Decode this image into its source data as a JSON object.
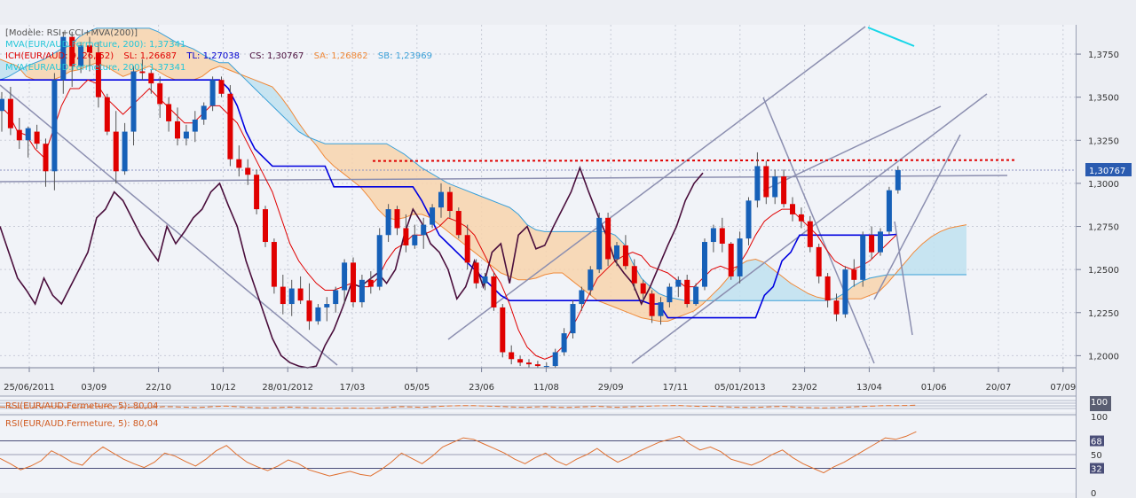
{
  "colors": {
    "background": "#f1f3f8",
    "grid": "#c9ccd7",
    "bull": "#1660b8",
    "bear": "#e00000",
    "tenkan": "#e00000",
    "kijun": "#0000e0",
    "chikou": "#4a0e3c",
    "cloud_up": "#f8d3ad",
    "cloud_up_line": "#f08a3a",
    "cloud_down": "#bfe0f0",
    "cloud_down_line": "#3aa0d8",
    "mva": "#16d6e8",
    "trend": "#8c8fb0",
    "resistance": "#e00000",
    "rsi": "#e07030",
    "price_tag": "#2a5bb0"
  },
  "header": {
    "model": "[Modèle: RSI+CCI+MVA(200)]",
    "mva_line1": "MVA(EUR/AUD.Fermeture, 200): 1,37341",
    "ichimoku": "ICH(EUR/AUD: 9, 26, 52)",
    "ich_sl": "SL: 1,26687",
    "ich_tl": "TL: 1,27038",
    "ich_cs": "CS: 1,30767",
    "ich_sa": "SA: 1,26862",
    "ich_sb": "SB: 1,23969",
    "mva_line2": "MVA(EUR/AUD.Fermeture, 200): 1,37341"
  },
  "rsi_panels": [
    {
      "label": "RSI(EUR/AUD.Fermeture, 5): 80,04",
      "top_tick": "100"
    },
    {
      "label": "RSI(EUR/AUD.Fermeture, 5): 80,04",
      "ticks": [
        "100",
        "68",
        "50",
        "32",
        "0"
      ]
    }
  ],
  "chart_data": {
    "type": "candlestick",
    "instrument": "EUR/AUD",
    "x_ticks": [
      "25/06/2011",
      "03/09",
      "22/10",
      "10/12",
      "28/01/2012",
      "17/03",
      "05/05",
      "23/06",
      "11/08",
      "29/09",
      "17/11",
      "05/01/2013",
      "23/02",
      "13/04",
      "01/06",
      "20/07",
      "07/09"
    ],
    "y_ticks": [
      "1,3750",
      "1,3500",
      "1,3250",
      "1,3000",
      "1,2750",
      "1,2500",
      "1,2250",
      "1,2000"
    ],
    "ylim": [
      1.193,
      1.392
    ],
    "last_price": "1,30767",
    "last_value": 1.30767,
    "resistance_level": 1.313,
    "candles": [
      {
        "o": 1.342,
        "h": 1.353,
        "l": 1.33,
        "c": 1.349
      },
      {
        "o": 1.349,
        "h": 1.356,
        "l": 1.328,
        "c": 1.332
      },
      {
        "o": 1.331,
        "h": 1.338,
        "l": 1.32,
        "c": 1.325
      },
      {
        "o": 1.325,
        "h": 1.333,
        "l": 1.315,
        "c": 1.332
      },
      {
        "o": 1.33,
        "h": 1.334,
        "l": 1.32,
        "c": 1.323
      },
      {
        "o": 1.323,
        "h": 1.326,
        "l": 1.298,
        "c": 1.307
      },
      {
        "o": 1.307,
        "h": 1.364,
        "l": 1.296,
        "c": 1.36
      },
      {
        "o": 1.36,
        "h": 1.388,
        "l": 1.352,
        "c": 1.385
      },
      {
        "o": 1.385,
        "h": 1.388,
        "l": 1.356,
        "c": 1.368
      },
      {
        "o": 1.368,
        "h": 1.382,
        "l": 1.364,
        "c": 1.38
      },
      {
        "o": 1.38,
        "h": 1.385,
        "l": 1.365,
        "c": 1.376
      },
      {
        "o": 1.376,
        "h": 1.382,
        "l": 1.344,
        "c": 1.35
      },
      {
        "o": 1.35,
        "h": 1.352,
        "l": 1.328,
        "c": 1.33
      },
      {
        "o": 1.33,
        "h": 1.342,
        "l": 1.3,
        "c": 1.307
      },
      {
        "o": 1.307,
        "h": 1.335,
        "l": 1.305,
        "c": 1.33
      },
      {
        "o": 1.33,
        "h": 1.368,
        "l": 1.322,
        "c": 1.365
      },
      {
        "o": 1.365,
        "h": 1.372,
        "l": 1.36,
        "c": 1.364
      },
      {
        "o": 1.364,
        "h": 1.366,
        "l": 1.352,
        "c": 1.358
      },
      {
        "o": 1.358,
        "h": 1.362,
        "l": 1.338,
        "c": 1.346
      },
      {
        "o": 1.346,
        "h": 1.35,
        "l": 1.33,
        "c": 1.336
      },
      {
        "o": 1.336,
        "h": 1.344,
        "l": 1.322,
        "c": 1.326
      },
      {
        "o": 1.326,
        "h": 1.334,
        "l": 1.322,
        "c": 1.33
      },
      {
        "o": 1.33,
        "h": 1.342,
        "l": 1.324,
        "c": 1.337
      },
      {
        "o": 1.337,
        "h": 1.347,
        "l": 1.334,
        "c": 1.345
      },
      {
        "o": 1.345,
        "h": 1.362,
        "l": 1.342,
        "c": 1.36
      },
      {
        "o": 1.36,
        "h": 1.362,
        "l": 1.35,
        "c": 1.352
      },
      {
        "o": 1.352,
        "h": 1.357,
        "l": 1.31,
        "c": 1.314
      },
      {
        "o": 1.314,
        "h": 1.322,
        "l": 1.304,
        "c": 1.309
      },
      {
        "o": 1.309,
        "h": 1.314,
        "l": 1.299,
        "c": 1.305
      },
      {
        "o": 1.305,
        "h": 1.308,
        "l": 1.282,
        "c": 1.285
      },
      {
        "o": 1.285,
        "h": 1.287,
        "l": 1.263,
        "c": 1.266
      },
      {
        "o": 1.266,
        "h": 1.268,
        "l": 1.236,
        "c": 1.24
      },
      {
        "o": 1.24,
        "h": 1.247,
        "l": 1.224,
        "c": 1.23
      },
      {
        "o": 1.23,
        "h": 1.244,
        "l": 1.223,
        "c": 1.239
      },
      {
        "o": 1.239,
        "h": 1.246,
        "l": 1.23,
        "c": 1.232
      },
      {
        "o": 1.232,
        "h": 1.242,
        "l": 1.215,
        "c": 1.22
      },
      {
        "o": 1.22,
        "h": 1.23,
        "l": 1.218,
        "c": 1.228
      },
      {
        "o": 1.228,
        "h": 1.234,
        "l": 1.22,
        "c": 1.23
      },
      {
        "o": 1.23,
        "h": 1.24,
        "l": 1.225,
        "c": 1.238
      },
      {
        "o": 1.238,
        "h": 1.256,
        "l": 1.23,
        "c": 1.254
      },
      {
        "o": 1.254,
        "h": 1.257,
        "l": 1.228,
        "c": 1.231
      },
      {
        "o": 1.231,
        "h": 1.247,
        "l": 1.228,
        "c": 1.244
      },
      {
        "o": 1.244,
        "h": 1.249,
        "l": 1.236,
        "c": 1.24
      },
      {
        "o": 1.24,
        "h": 1.274,
        "l": 1.238,
        "c": 1.27
      },
      {
        "o": 1.27,
        "h": 1.288,
        "l": 1.266,
        "c": 1.285
      },
      {
        "o": 1.285,
        "h": 1.287,
        "l": 1.27,
        "c": 1.274
      },
      {
        "o": 1.274,
        "h": 1.282,
        "l": 1.26,
        "c": 1.264
      },
      {
        "o": 1.264,
        "h": 1.276,
        "l": 1.262,
        "c": 1.27
      },
      {
        "o": 1.27,
        "h": 1.28,
        "l": 1.262,
        "c": 1.276
      },
      {
        "o": 1.276,
        "h": 1.288,
        "l": 1.274,
        "c": 1.286
      },
      {
        "o": 1.286,
        "h": 1.3,
        "l": 1.28,
        "c": 1.295
      },
      {
        "o": 1.295,
        "h": 1.298,
        "l": 1.28,
        "c": 1.284
      },
      {
        "o": 1.284,
        "h": 1.286,
        "l": 1.268,
        "c": 1.27
      },
      {
        "o": 1.27,
        "h": 1.276,
        "l": 1.25,
        "c": 1.254
      },
      {
        "o": 1.254,
        "h": 1.256,
        "l": 1.239,
        "c": 1.242
      },
      {
        "o": 1.242,
        "h": 1.248,
        "l": 1.238,
        "c": 1.246
      },
      {
        "o": 1.246,
        "h": 1.248,
        "l": 1.226,
        "c": 1.228
      },
      {
        "o": 1.228,
        "h": 1.23,
        "l": 1.199,
        "c": 1.202
      },
      {
        "o": 1.202,
        "h": 1.206,
        "l": 1.195,
        "c": 1.198
      },
      {
        "o": 1.198,
        "h": 1.2,
        "l": 1.194,
        "c": 1.196
      },
      {
        "o": 1.196,
        "h": 1.198,
        "l": 1.193,
        "c": 1.195
      },
      {
        "o": 1.195,
        "h": 1.197,
        "l": 1.193,
        "c": 1.194
      },
      {
        "o": 1.194,
        "h": 1.196,
        "l": 1.193,
        "c": 1.194
      },
      {
        "o": 1.194,
        "h": 1.204,
        "l": 1.193,
        "c": 1.202
      },
      {
        "o": 1.202,
        "h": 1.216,
        "l": 1.2,
        "c": 1.213
      },
      {
        "o": 1.213,
        "h": 1.232,
        "l": 1.21,
        "c": 1.23
      },
      {
        "o": 1.23,
        "h": 1.24,
        "l": 1.226,
        "c": 1.238
      },
      {
        "o": 1.238,
        "h": 1.252,
        "l": 1.235,
        "c": 1.25
      },
      {
        "o": 1.25,
        "h": 1.283,
        "l": 1.248,
        "c": 1.28
      },
      {
        "o": 1.28,
        "h": 1.283,
        "l": 1.252,
        "c": 1.256
      },
      {
        "o": 1.256,
        "h": 1.266,
        "l": 1.252,
        "c": 1.264
      },
      {
        "o": 1.264,
        "h": 1.27,
        "l": 1.25,
        "c": 1.252
      },
      {
        "o": 1.252,
        "h": 1.256,
        "l": 1.238,
        "c": 1.242
      },
      {
        "o": 1.242,
        "h": 1.244,
        "l": 1.232,
        "c": 1.236
      },
      {
        "o": 1.236,
        "h": 1.238,
        "l": 1.219,
        "c": 1.223
      },
      {
        "o": 1.223,
        "h": 1.234,
        "l": 1.218,
        "c": 1.231
      },
      {
        "o": 1.231,
        "h": 1.242,
        "l": 1.228,
        "c": 1.24
      },
      {
        "o": 1.24,
        "h": 1.246,
        "l": 1.234,
        "c": 1.244
      },
      {
        "o": 1.244,
        "h": 1.247,
        "l": 1.228,
        "c": 1.23
      },
      {
        "o": 1.23,
        "h": 1.242,
        "l": 1.229,
        "c": 1.24
      },
      {
        "o": 1.24,
        "h": 1.268,
        "l": 1.238,
        "c": 1.266
      },
      {
        "o": 1.266,
        "h": 1.276,
        "l": 1.26,
        "c": 1.274
      },
      {
        "o": 1.274,
        "h": 1.28,
        "l": 1.26,
        "c": 1.265
      },
      {
        "o": 1.265,
        "h": 1.266,
        "l": 1.244,
        "c": 1.246
      },
      {
        "o": 1.246,
        "h": 1.272,
        "l": 1.242,
        "c": 1.268
      },
      {
        "o": 1.268,
        "h": 1.292,
        "l": 1.264,
        "c": 1.29
      },
      {
        "o": 1.29,
        "h": 1.318,
        "l": 1.286,
        "c": 1.31
      },
      {
        "o": 1.31,
        "h": 1.313,
        "l": 1.288,
        "c": 1.292
      },
      {
        "o": 1.292,
        "h": 1.308,
        "l": 1.288,
        "c": 1.304
      },
      {
        "o": 1.304,
        "h": 1.308,
        "l": 1.286,
        "c": 1.288
      },
      {
        "o": 1.288,
        "h": 1.292,
        "l": 1.278,
        "c": 1.282
      },
      {
        "o": 1.282,
        "h": 1.286,
        "l": 1.274,
        "c": 1.278
      },
      {
        "o": 1.278,
        "h": 1.281,
        "l": 1.26,
        "c": 1.263
      },
      {
        "o": 1.263,
        "h": 1.265,
        "l": 1.242,
        "c": 1.246
      },
      {
        "o": 1.246,
        "h": 1.248,
        "l": 1.228,
        "c": 1.232
      },
      {
        "o": 1.232,
        "h": 1.236,
        "l": 1.22,
        "c": 1.224
      },
      {
        "o": 1.224,
        "h": 1.252,
        "l": 1.222,
        "c": 1.25
      },
      {
        "o": 1.25,
        "h": 1.256,
        "l": 1.24,
        "c": 1.244
      },
      {
        "o": 1.244,
        "h": 1.272,
        "l": 1.24,
        "c": 1.27
      },
      {
        "o": 1.27,
        "h": 1.275,
        "l": 1.256,
        "c": 1.26
      },
      {
        "o": 1.26,
        "h": 1.274,
        "l": 1.258,
        "c": 1.272
      },
      {
        "o": 1.272,
        "h": 1.298,
        "l": 1.27,
        "c": 1.296
      },
      {
        "o": 1.296,
        "h": 1.31,
        "l": 1.294,
        "c": 1.3077
      }
    ],
    "tenkan": [
      1.345,
      1.34,
      1.33,
      1.328,
      1.32,
      1.315,
      1.33,
      1.345,
      1.355,
      1.355,
      1.36,
      1.358,
      1.35,
      1.345,
      1.34,
      1.345,
      1.35,
      1.355,
      1.35,
      1.345,
      1.34,
      1.335,
      1.335,
      1.34,
      1.345,
      1.345,
      1.34,
      1.335,
      1.325,
      1.315,
      1.305,
      1.295,
      1.28,
      1.265,
      1.255,
      1.248,
      1.242,
      1.238,
      1.238,
      1.24,
      1.242,
      1.24,
      1.24,
      1.245,
      1.255,
      1.262,
      1.265,
      1.27,
      1.27,
      1.272,
      1.275,
      1.28,
      1.278,
      1.275,
      1.27,
      1.26,
      1.25,
      1.242,
      1.23,
      1.215,
      1.205,
      1.2,
      1.198,
      1.2,
      1.205,
      1.215,
      1.225,
      1.235,
      1.245,
      1.25,
      1.255,
      1.258,
      1.26,
      1.258,
      1.252,
      1.25,
      1.248,
      1.244,
      1.24,
      1.24,
      1.245,
      1.25,
      1.252,
      1.25,
      1.252,
      1.26,
      1.27,
      1.278,
      1.282,
      1.285,
      1.285,
      1.28,
      1.275,
      1.27,
      1.262,
      1.255,
      1.252,
      1.25,
      1.252,
      1.255,
      1.26,
      1.265,
      1.27
    ],
    "kijun": [
      1.36,
      1.36,
      1.36,
      1.36,
      1.36,
      1.36,
      1.36,
      1.36,
      1.36,
      1.36,
      1.36,
      1.36,
      1.36,
      1.36,
      1.36,
      1.36,
      1.36,
      1.36,
      1.36,
      1.36,
      1.36,
      1.36,
      1.36,
      1.36,
      1.36,
      1.36,
      1.355,
      1.345,
      1.33,
      1.32,
      1.315,
      1.31,
      1.31,
      1.31,
      1.31,
      1.31,
      1.31,
      1.31,
      1.298,
      1.298,
      1.298,
      1.298,
      1.298,
      1.298,
      1.298,
      1.298,
      1.298,
      1.298,
      1.29,
      1.28,
      1.27,
      1.265,
      1.26,
      1.255,
      1.25,
      1.245,
      1.24,
      1.235,
      1.232,
      1.232,
      1.232,
      1.232,
      1.232,
      1.232,
      1.232,
      1.232,
      1.232,
      1.232,
      1.232,
      1.232,
      1.232,
      1.232,
      1.232,
      1.232,
      1.23,
      1.23,
      1.222,
      1.222,
      1.222,
      1.222,
      1.222,
      1.222,
      1.222,
      1.222,
      1.222,
      1.222,
      1.222,
      1.235,
      1.24,
      1.255,
      1.26,
      1.27,
      1.27,
      1.27,
      1.27,
      1.27,
      1.27,
      1.27,
      1.27,
      1.27,
      1.27,
      1.27,
      1.2704
    ],
    "chikou": [
      1.275,
      1.26,
      1.245,
      1.238,
      1.23,
      1.245,
      1.235,
      1.23,
      1.24,
      1.25,
      1.26,
      1.28,
      1.285,
      1.295,
      1.29,
      1.28,
      1.27,
      1.262,
      1.255,
      1.275,
      1.265,
      1.272,
      1.28,
      1.285,
      1.295,
      1.3,
      1.287,
      1.275,
      1.255,
      1.24,
      1.225,
      1.21,
      1.2,
      1.196,
      1.194,
      1.193,
      1.194,
      1.206,
      1.215,
      1.228,
      1.242,
      1.24,
      1.244,
      1.248,
      1.242,
      1.25,
      1.27,
      1.285,
      1.277,
      1.265,
      1.26,
      1.25,
      1.233,
      1.24,
      1.255,
      1.24,
      1.26,
      1.265,
      1.242,
      1.27,
      1.275,
      1.262,
      1.264,
      1.275,
      1.285,
      1.295,
      1.309,
      1.295,
      1.282,
      1.27,
      1.255,
      1.248,
      1.242,
      1.23,
      1.24,
      1.252,
      1.264,
      1.275,
      1.29,
      1.3,
      1.306
    ],
    "senkou_a": [
      1.372,
      1.37,
      1.368,
      1.362,
      1.36,
      1.36,
      1.36,
      1.362,
      1.365,
      1.366,
      1.368,
      1.37,
      1.368,
      1.365,
      1.362,
      1.364,
      1.366,
      1.368,
      1.365,
      1.362,
      1.36,
      1.36,
      1.36,
      1.362,
      1.366,
      1.368,
      1.366,
      1.364,
      1.362,
      1.36,
      1.358,
      1.356,
      1.35,
      1.343,
      1.335,
      1.328,
      1.322,
      1.315,
      1.31,
      1.306,
      1.302,
      1.298,
      1.292,
      1.285,
      1.28,
      1.279,
      1.28,
      1.282,
      1.282,
      1.28,
      1.276,
      1.272,
      1.268,
      1.264,
      1.26,
      1.256,
      1.252,
      1.248,
      1.246,
      1.244,
      1.244,
      1.245,
      1.247,
      1.248,
      1.248,
      1.244,
      1.24,
      1.236,
      1.232,
      1.23,
      1.228,
      1.226,
      1.224,
      1.222,
      1.221,
      1.22,
      1.22,
      1.222,
      1.224,
      1.226,
      1.23,
      1.235,
      1.24,
      1.246,
      1.252,
      1.255,
      1.256,
      1.254,
      1.25,
      1.246,
      1.242,
      1.239,
      1.236,
      1.234,
      1.233,
      1.233,
      1.233,
      1.233,
      1.233,
      1.235,
      1.237,
      1.242,
      1.248,
      1.254,
      1.26,
      1.265,
      1.269,
      1.272,
      1.274,
      1.275,
      1.276
    ],
    "senkou_b": [
      1.36,
      1.362,
      1.365,
      1.368,
      1.37,
      1.372,
      1.375,
      1.378,
      1.38,
      1.385,
      1.388,
      1.39,
      1.39,
      1.39,
      1.39,
      1.39,
      1.39,
      1.39,
      1.388,
      1.385,
      1.382,
      1.38,
      1.378,
      1.375,
      1.372,
      1.37,
      1.37,
      1.365,
      1.36,
      1.355,
      1.35,
      1.345,
      1.34,
      1.335,
      1.33,
      1.327,
      1.325,
      1.323,
      1.323,
      1.323,
      1.323,
      1.323,
      1.323,
      1.323,
      1.323,
      1.32,
      1.317,
      1.313,
      1.309,
      1.306,
      1.303,
      1.3,
      1.298,
      1.296,
      1.294,
      1.292,
      1.29,
      1.288,
      1.286,
      1.282,
      1.276,
      1.273,
      1.272,
      1.272,
      1.272,
      1.272,
      1.272,
      1.272,
      1.272,
      1.272,
      1.27,
      1.265,
      1.254,
      1.245,
      1.24,
      1.236,
      1.234,
      1.233,
      1.232,
      1.232,
      1.232,
      1.232,
      1.232,
      1.232,
      1.232,
      1.232,
      1.232,
      1.232,
      1.232,
      1.232,
      1.232,
      1.232,
      1.232,
      1.232,
      1.232,
      1.233,
      1.236,
      1.24,
      1.243,
      1.245,
      1.246,
      1.247,
      1.247,
      1.247,
      1.247,
      1.247,
      1.247,
      1.247,
      1.247,
      1.247,
      1.247
    ],
    "rsi": [
      45,
      38,
      30,
      35,
      42,
      55,
      48,
      40,
      36,
      50,
      60,
      52,
      44,
      38,
      33,
      40,
      52,
      48,
      41,
      35,
      44,
      55,
      62,
      50,
      40,
      34,
      29,
      35,
      43,
      38,
      30,
      26,
      22,
      25,
      28,
      24,
      22,
      30,
      40,
      52,
      45,
      38,
      48,
      60,
      66,
      72,
      70,
      64,
      58,
      52,
      44,
      38,
      46,
      52,
      42,
      36,
      44,
      50,
      58,
      48,
      40,
      46,
      54,
      60,
      66,
      70,
      74,
      64,
      56,
      60,
      54,
      44,
      40,
      36,
      42,
      50,
      56,
      46,
      38,
      32,
      26,
      34,
      40,
      48,
      56,
      64,
      72,
      70,
      74,
      80
    ],
    "mva": [
      1.375,
      1.3735
    ]
  }
}
